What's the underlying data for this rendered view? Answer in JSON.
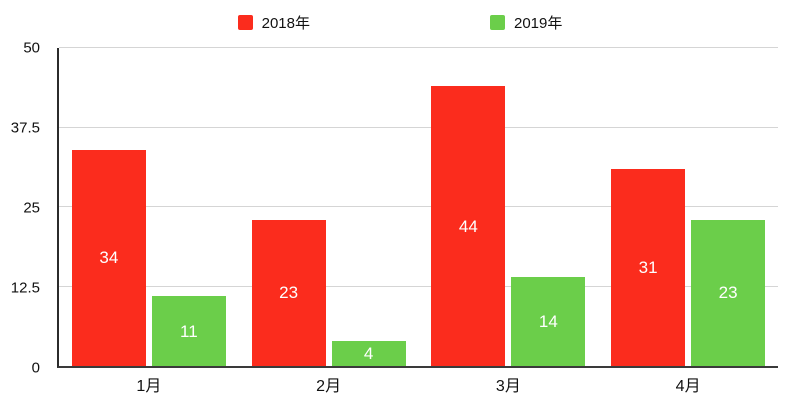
{
  "chart_data": {
    "type": "bar",
    "title": "",
    "xlabel": "",
    "ylabel": "",
    "categories": [
      "1月",
      "2月",
      "3月",
      "4月"
    ],
    "series": [
      {
        "name": "2018年",
        "color": "#fb2c1d",
        "values": [
          34,
          23,
          44,
          31
        ]
      },
      {
        "name": "2019年",
        "color": "#6bce4a",
        "values": [
          11,
          4,
          14,
          23
        ]
      }
    ],
    "ylim": [
      0,
      50
    ],
    "yticks": [
      0,
      12.5,
      25,
      37.5,
      50
    ],
    "grid": true,
    "legend_position": "top",
    "bar_label_color": "#ffffff",
    "gridline_color": "#d5d5d5",
    "axis_color": "#2b2b2b"
  }
}
